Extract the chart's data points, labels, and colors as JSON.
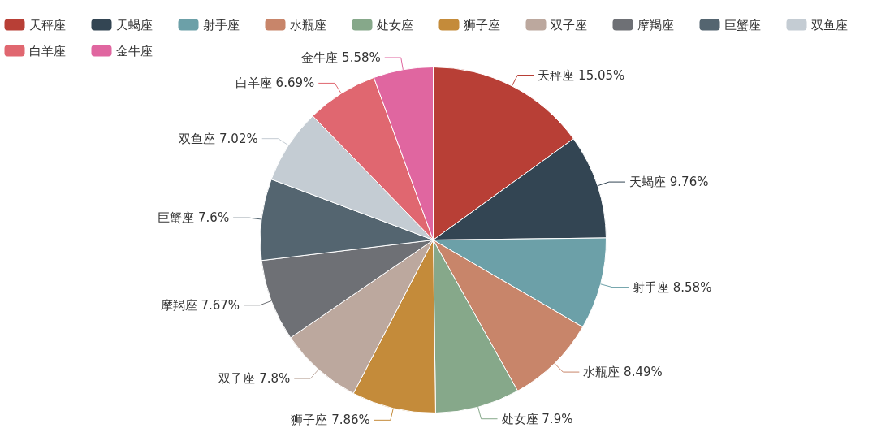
{
  "chart_data": {
    "type": "pie",
    "categories": [
      "天秤座",
      "天蝎座",
      "射手座",
      "水瓶座",
      "处女座",
      "狮子座",
      "双子座",
      "摩羯座",
      "巨蟹座",
      "双鱼座",
      "白羊座",
      "金牛座"
    ],
    "values": [
      15.05,
      9.76,
      8.58,
      8.49,
      7.9,
      7.86,
      7.8,
      7.67,
      7.6,
      7.02,
      6.69,
      5.58
    ],
    "value_labels": [
      "15.05%",
      "9.76%",
      "8.58%",
      "8.49%",
      "7.9%",
      "7.86%",
      "7.8%",
      "7.67%",
      "7.6%",
      "7.02%",
      "6.69%",
      "5.58%"
    ],
    "colors": [
      "#b83f36",
      "#334553",
      "#6ca0a8",
      "#c8856a",
      "#86a88a",
      "#c48b3a",
      "#bca89e",
      "#6e7075",
      "#546570",
      "#c4ccd3",
      "#e06770",
      "#e066a0"
    ],
    "legend": "top left"
  }
}
